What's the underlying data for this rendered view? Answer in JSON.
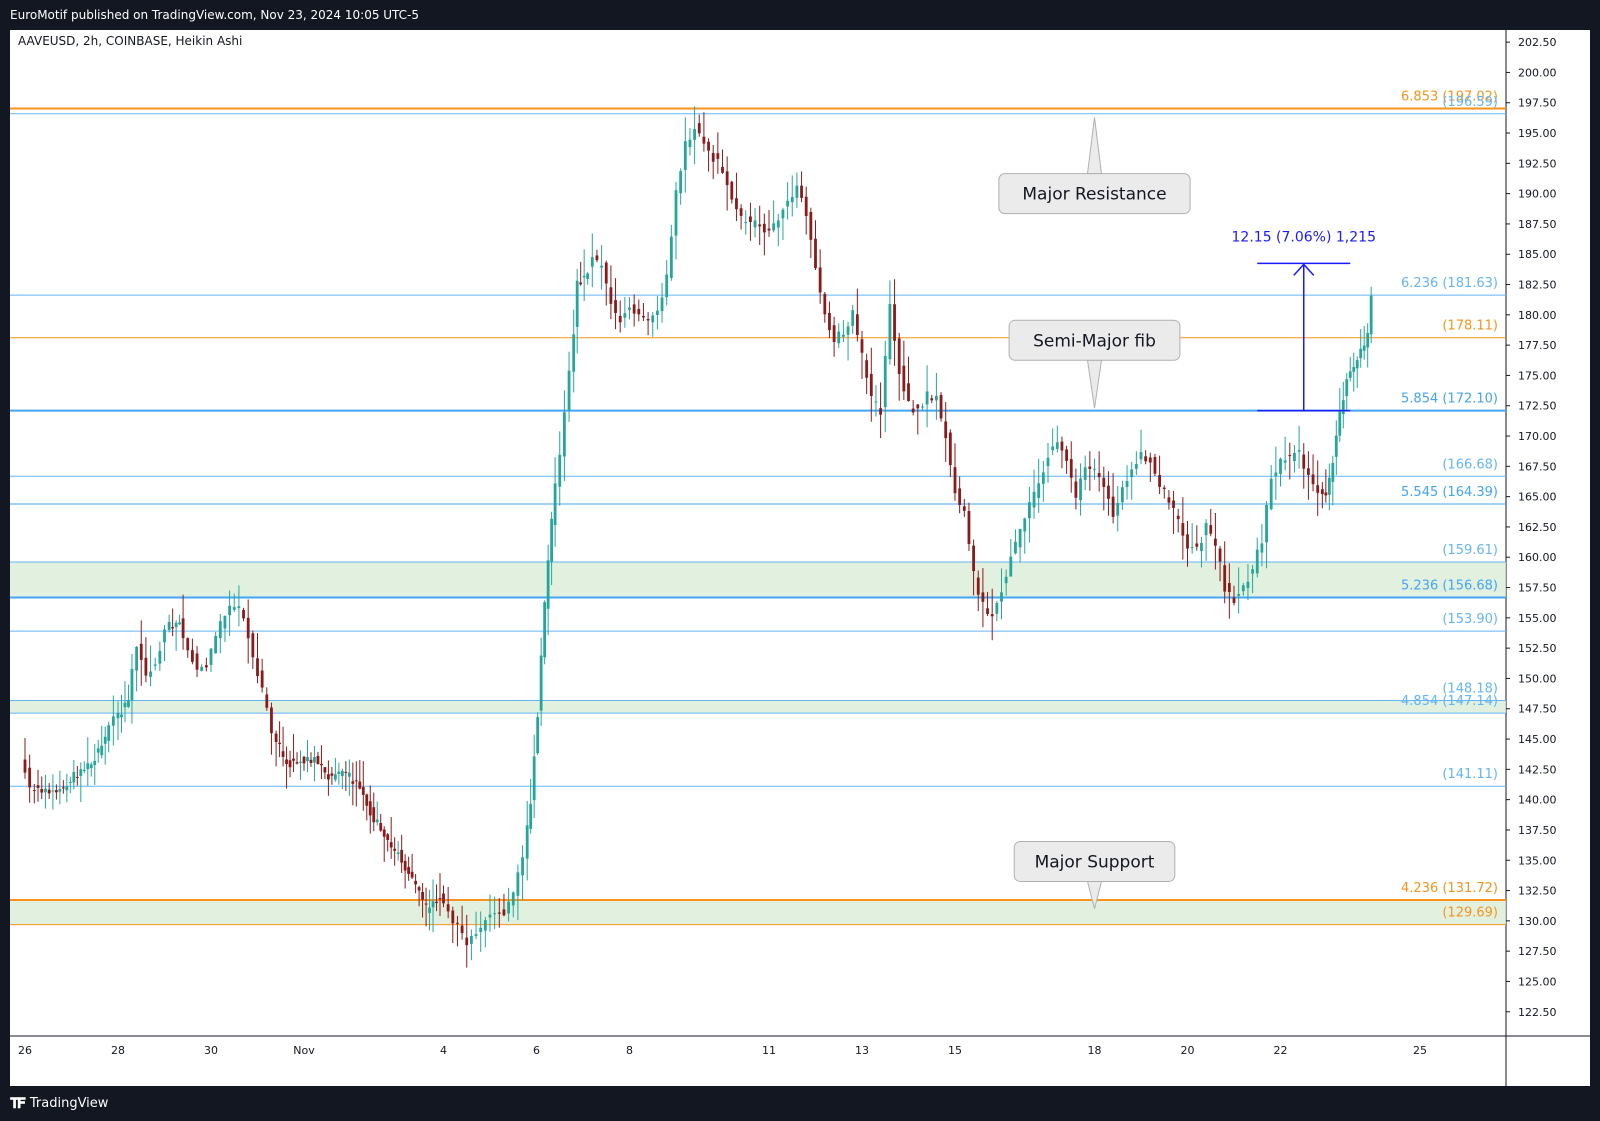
{
  "header": {
    "text": "EuroMotif published on TradingView.com, Nov 23, 2024 10:05 UTC-5"
  },
  "footer": {
    "logo_icon": "tradingview-logo-icon",
    "brand": "TradingView"
  },
  "colors": {
    "up": "#26a69a",
    "down": "#8b1a1a",
    "orange": "#f7931a",
    "blue": "#42a5f5",
    "lightblue": "#64b5f6",
    "zone": "#d8ecd4",
    "measure": "#1a1aff"
  },
  "chart_data": {
    "type": "candlestick",
    "symbol_label": "AAVEUSD, 2h, COINBASE, Heikin Ashi",
    "ylim": [
      120.5,
      203.5
    ],
    "y_ticks": [
      "122.50",
      "125.00",
      "127.50",
      "130.00",
      "132.50",
      "135.00",
      "137.50",
      "140.00",
      "142.50",
      "145.00",
      "147.50",
      "150.00",
      "152.50",
      "155.00",
      "157.50",
      "160.00",
      "162.50",
      "165.00",
      "167.50",
      "170.00",
      "172.50",
      "175.00",
      "177.50",
      "180.00",
      "182.50",
      "185.00",
      "187.50",
      "190.00",
      "192.50",
      "195.00",
      "197.50",
      "200.00",
      "202.50"
    ],
    "x_ticks": [
      {
        "label": "26",
        "day": 0
      },
      {
        "label": "28",
        "day": 2
      },
      {
        "label": "30",
        "day": 4
      },
      {
        "label": "Nov",
        "day": 6
      },
      {
        "label": "4",
        "day": 9
      },
      {
        "label": "6",
        "day": 11
      },
      {
        "label": "8",
        "day": 13
      },
      {
        "label": "11",
        "day": 16
      },
      {
        "label": "13",
        "day": 18
      },
      {
        "label": "15",
        "day": 20
      },
      {
        "label": "18",
        "day": 23
      },
      {
        "label": "20",
        "day": 25
      },
      {
        "label": "22",
        "day": 27
      },
      {
        "label": "25",
        "day": 30
      }
    ],
    "levels": [
      {
        "label": "6.853 (197.02)",
        "price": 197.02,
        "color": "#f7931a",
        "width": 2
      },
      {
        "label": "(196.59)",
        "price": 196.59,
        "color": "#64b5f6",
        "width": 1
      },
      {
        "label": "6.236 (181.63)",
        "price": 181.63,
        "color": "#64b5f6",
        "width": 1
      },
      {
        "label": "(178.11)",
        "price": 178.11,
        "color": "#f7931a",
        "width": 1
      },
      {
        "label": "5.854 (172.10)",
        "price": 172.1,
        "color": "#42a5f5",
        "width": 2
      },
      {
        "label": "(166.68)",
        "price": 166.68,
        "color": "#64b5f6",
        "width": 1
      },
      {
        "label": "5.545 (164.39)",
        "price": 164.39,
        "color": "#42a5f5",
        "width": 1
      },
      {
        "label": "(159.61)",
        "price": 159.61,
        "color": "#64b5f6",
        "width": 1
      },
      {
        "label": "5.236 (156.68)",
        "price": 156.68,
        "color": "#42a5f5",
        "width": 2
      },
      {
        "label": "(153.90)",
        "price": 153.9,
        "color": "#64b5f6",
        "width": 1
      },
      {
        "label": "(148.18)",
        "price": 148.18,
        "color": "#64b5f6",
        "width": 1
      },
      {
        "label": "4.854 (147.14)",
        "price": 147.14,
        "color": "#64b5f6",
        "width": 1
      },
      {
        "label": "(141.11)",
        "price": 141.11,
        "color": "#64b5f6",
        "width": 1
      },
      {
        "label": "4.236 (131.72)",
        "price": 131.72,
        "color": "#f7931a",
        "width": 2
      },
      {
        "label": "(129.69)",
        "price": 129.69,
        "color": "#f7931a",
        "width": 1
      }
    ],
    "zones": [
      {
        "from": 156.68,
        "to": 159.61
      },
      {
        "from": 147.14,
        "to": 148.18
      },
      {
        "from": 129.69,
        "to": 131.72
      }
    ],
    "callouts": [
      {
        "text": "Major Resistance",
        "price": 190.0,
        "day": 23.0,
        "pointer_price": 196.3
      },
      {
        "text": "Semi-Major fib",
        "price": 177.9,
        "day": 23.0,
        "pointer_price": 172.3
      },
      {
        "text": "Major Support",
        "price": 134.9,
        "day": 23.0,
        "pointer_price": 131.0
      }
    ],
    "measure": {
      "label": "12.15 (7.06%) 1,215",
      "from_price": 172.1,
      "to_price": 184.25,
      "day_start": 26.5,
      "day_end": 28.5
    },
    "series": [
      {
        "day": 0.0,
        "price": 143.5
      },
      {
        "day": 0.2,
        "price": 141.0
      },
      {
        "day": 0.6,
        "price": 140.7
      },
      {
        "day": 0.9,
        "price": 141.0
      },
      {
        "day": 1.2,
        "price": 142.2
      },
      {
        "day": 1.5,
        "price": 143.0
      },
      {
        "day": 1.8,
        "price": 145.0
      },
      {
        "day": 2.0,
        "price": 146.8
      },
      {
        "day": 2.3,
        "price": 148.0
      },
      {
        "day": 2.5,
        "price": 152.8
      },
      {
        "day": 2.7,
        "price": 150.5
      },
      {
        "day": 2.9,
        "price": 151.0
      },
      {
        "day": 3.1,
        "price": 154.2
      },
      {
        "day": 3.4,
        "price": 154.8
      },
      {
        "day": 3.6,
        "price": 152.5
      },
      {
        "day": 3.8,
        "price": 151.0
      },
      {
        "day": 4.0,
        "price": 151.3
      },
      {
        "day": 4.2,
        "price": 153.5
      },
      {
        "day": 4.4,
        "price": 155.5
      },
      {
        "day": 4.6,
        "price": 156.2
      },
      {
        "day": 4.8,
        "price": 155.0
      },
      {
        "day": 5.0,
        "price": 152.0
      },
      {
        "day": 5.2,
        "price": 149.0
      },
      {
        "day": 5.4,
        "price": 145.5
      },
      {
        "day": 5.7,
        "price": 143.0
      },
      {
        "day": 6.0,
        "price": 143.2
      },
      {
        "day": 6.3,
        "price": 143.5
      },
      {
        "day": 6.6,
        "price": 142.0
      },
      {
        "day": 6.9,
        "price": 142.2
      },
      {
        "day": 7.2,
        "price": 141.5
      },
      {
        "day": 7.5,
        "price": 139.0
      },
      {
        "day": 7.8,
        "price": 137.0
      },
      {
        "day": 8.1,
        "price": 135.5
      },
      {
        "day": 8.4,
        "price": 133.5
      },
      {
        "day": 8.7,
        "price": 131.0
      },
      {
        "day": 9.0,
        "price": 132.0
      },
      {
        "day": 9.2,
        "price": 130.5
      },
      {
        "day": 9.4,
        "price": 129.5
      },
      {
        "day": 9.6,
        "price": 128.3
      },
      {
        "day": 9.8,
        "price": 128.8
      },
      {
        "day": 10.0,
        "price": 130.0
      },
      {
        "day": 10.2,
        "price": 131.0
      },
      {
        "day": 10.4,
        "price": 130.5
      },
      {
        "day": 10.6,
        "price": 132.0
      },
      {
        "day": 10.8,
        "price": 135.5
      },
      {
        "day": 10.95,
        "price": 140.0
      },
      {
        "day": 11.1,
        "price": 147.0
      },
      {
        "day": 11.25,
        "price": 156.0
      },
      {
        "day": 11.4,
        "price": 163.0
      },
      {
        "day": 11.6,
        "price": 168.5
      },
      {
        "day": 11.8,
        "price": 175.0
      },
      {
        "day": 11.95,
        "price": 182.5
      },
      {
        "day": 12.1,
        "price": 183.0
      },
      {
        "day": 12.3,
        "price": 184.5
      },
      {
        "day": 12.5,
        "price": 184.0
      },
      {
        "day": 12.7,
        "price": 181.0
      },
      {
        "day": 12.9,
        "price": 179.5
      },
      {
        "day": 13.1,
        "price": 180.8
      },
      {
        "day": 13.3,
        "price": 180.0
      },
      {
        "day": 13.5,
        "price": 179.5
      },
      {
        "day": 13.7,
        "price": 180.5
      },
      {
        "day": 13.9,
        "price": 183.0
      },
      {
        "day": 14.1,
        "price": 190.0
      },
      {
        "day": 14.3,
        "price": 194.0
      },
      {
        "day": 14.5,
        "price": 195.5
      },
      {
        "day": 14.7,
        "price": 194.0
      },
      {
        "day": 14.9,
        "price": 193.0
      },
      {
        "day": 15.1,
        "price": 192.0
      },
      {
        "day": 15.3,
        "price": 189.5
      },
      {
        "day": 15.5,
        "price": 188.0
      },
      {
        "day": 15.7,
        "price": 187.5
      },
      {
        "day": 15.9,
        "price": 187.5
      },
      {
        "day": 16.1,
        "price": 186.8
      },
      {
        "day": 16.3,
        "price": 187.8
      },
      {
        "day": 16.5,
        "price": 189.5
      },
      {
        "day": 16.7,
        "price": 190.5
      },
      {
        "day": 16.9,
        "price": 188.5
      },
      {
        "day": 17.1,
        "price": 184.0
      },
      {
        "day": 17.3,
        "price": 180.0
      },
      {
        "day": 17.5,
        "price": 178.0
      },
      {
        "day": 17.7,
        "price": 178.5
      },
      {
        "day": 17.9,
        "price": 180.0
      },
      {
        "day": 18.1,
        "price": 176.5
      },
      {
        "day": 18.3,
        "price": 173.0
      },
      {
        "day": 18.5,
        "price": 172.0
      },
      {
        "day": 18.7,
        "price": 180.5
      },
      {
        "day": 18.9,
        "price": 175.5
      },
      {
        "day": 19.1,
        "price": 172.5
      },
      {
        "day": 19.3,
        "price": 172.0
      },
      {
        "day": 19.5,
        "price": 173.5
      },
      {
        "day": 19.7,
        "price": 173.0
      },
      {
        "day": 19.9,
        "price": 170.0
      },
      {
        "day": 20.1,
        "price": 165.5
      },
      {
        "day": 20.3,
        "price": 163.5
      },
      {
        "day": 20.5,
        "price": 158.5
      },
      {
        "day": 20.7,
        "price": 156.0
      },
      {
        "day": 20.9,
        "price": 155.0
      },
      {
        "day": 21.1,
        "price": 157.5
      },
      {
        "day": 21.3,
        "price": 160.0
      },
      {
        "day": 21.5,
        "price": 162.0
      },
      {
        "day": 21.7,
        "price": 164.5
      },
      {
        "day": 21.9,
        "price": 166.0
      },
      {
        "day": 22.1,
        "price": 168.5
      },
      {
        "day": 22.3,
        "price": 169.5
      },
      {
        "day": 22.5,
        "price": 168.0
      },
      {
        "day": 22.7,
        "price": 165.0
      },
      {
        "day": 22.9,
        "price": 167.5
      },
      {
        "day": 23.1,
        "price": 167.0
      },
      {
        "day": 23.3,
        "price": 166.0
      },
      {
        "day": 23.5,
        "price": 163.5
      },
      {
        "day": 23.7,
        "price": 165.5
      },
      {
        "day": 23.9,
        "price": 167.5
      },
      {
        "day": 24.1,
        "price": 168.5
      },
      {
        "day": 24.3,
        "price": 168.0
      },
      {
        "day": 24.5,
        "price": 166.0
      },
      {
        "day": 24.7,
        "price": 164.5
      },
      {
        "day": 24.9,
        "price": 163.0
      },
      {
        "day": 25.1,
        "price": 161.0
      },
      {
        "day": 25.3,
        "price": 160.5
      },
      {
        "day": 25.5,
        "price": 162.5
      },
      {
        "day": 25.7,
        "price": 161.0
      },
      {
        "day": 25.9,
        "price": 157.5
      },
      {
        "day": 26.1,
        "price": 156.5
      },
      {
        "day": 26.3,
        "price": 157.5
      },
      {
        "day": 26.5,
        "price": 159.0
      },
      {
        "day": 26.7,
        "price": 161.5
      },
      {
        "day": 26.9,
        "price": 166.5
      },
      {
        "day": 27.1,
        "price": 167.8
      },
      {
        "day": 27.3,
        "price": 168.3
      },
      {
        "day": 27.5,
        "price": 168.5
      },
      {
        "day": 27.7,
        "price": 166.5
      },
      {
        "day": 27.9,
        "price": 165.5
      },
      {
        "day": 28.05,
        "price": 164.8
      },
      {
        "day": 28.2,
        "price": 168.0
      },
      {
        "day": 28.35,
        "price": 172.0
      },
      {
        "day": 28.5,
        "price": 174.5
      },
      {
        "day": 28.65,
        "price": 175.8
      },
      {
        "day": 28.8,
        "price": 177.0
      },
      {
        "day": 28.95,
        "price": 178.2
      },
      {
        "day": 29.05,
        "price": 181.5
      }
    ]
  }
}
